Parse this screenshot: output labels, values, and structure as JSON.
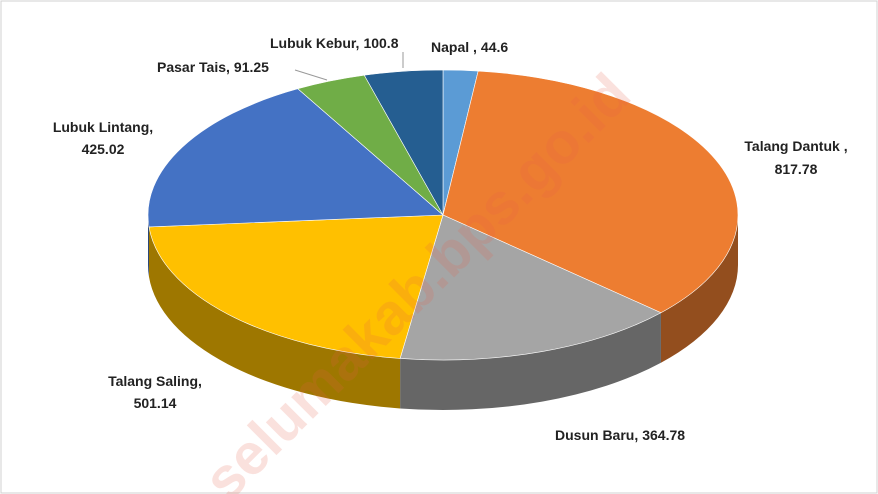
{
  "chart_data": {
    "type": "pie3d",
    "categories": [
      "Napal ,",
      "Talang Dantuk ,",
      "Dusun Baru,",
      "Talang Saling,",
      "Lubuk Lintang,",
      "Pasar Tais,",
      "Lubuk Kebur,"
    ],
    "values": [
      44.6,
      817.78,
      364.78,
      501.14,
      425.02,
      91.25,
      100.8
    ],
    "colors": [
      "#5b9bd5",
      "#ed7d31",
      "#a5a5a5",
      "#ffc000",
      "#4472c4",
      "#70ad47",
      "#255e91"
    ],
    "watermark": "selumakab.bps.go.id"
  }
}
